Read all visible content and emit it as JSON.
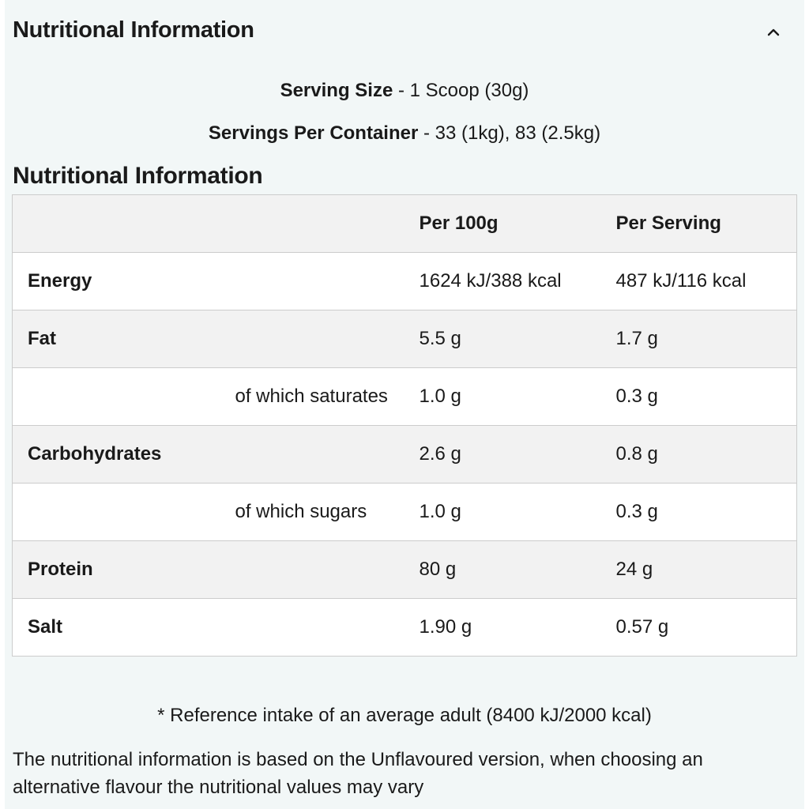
{
  "accordion": {
    "title": "Nutritional Information",
    "toggle_icon": "chevron-up-icon"
  },
  "serving": {
    "size_label": "Serving Size",
    "size_value": " - 1 Scoop (30g)",
    "per_container_label": "Servings Per Container",
    "per_container_value": " - 33 (1kg), 83 (2.5kg)"
  },
  "table": {
    "title": "Nutritional Information",
    "headers": {
      "name": "",
      "per_100g": "Per 100g",
      "per_serving": "Per Serving"
    },
    "rows": [
      {
        "name": "Energy",
        "sub": "",
        "per_100g": "1624 kJ/388 kcal",
        "per_serving": "487 kJ/116 kcal"
      },
      {
        "name": "Fat",
        "sub": "",
        "per_100g": "5.5 g",
        "per_serving": "1.7 g"
      },
      {
        "name": "",
        "sub": "of which saturates",
        "per_100g": "1.0 g",
        "per_serving": "0.3 g"
      },
      {
        "name": "Carbohydrates",
        "sub": "",
        "per_100g": "2.6 g",
        "per_serving": "0.8 g"
      },
      {
        "name": "",
        "sub": "of which sugars",
        "per_100g": "1.0 g",
        "per_serving": "0.3 g"
      },
      {
        "name": "Protein",
        "sub": "",
        "per_100g": "80 g",
        "per_serving": "24 g"
      },
      {
        "name": "Salt",
        "sub": "",
        "per_100g": "1.90 g",
        "per_serving": "0.57 g"
      }
    ]
  },
  "footnote": "* Reference intake of an average adult (8400 kJ/2000 kcal)",
  "disclaimer": "The nutritional information is based on the Unflavoured version, when choosing an alternative flavour the nutritional values may vary"
}
